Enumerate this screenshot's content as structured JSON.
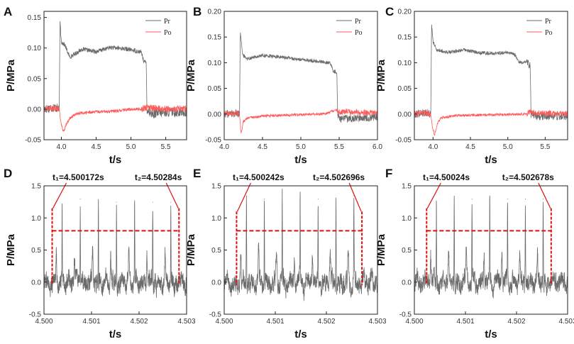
{
  "figure": {
    "legend": [
      "Pr",
      "Po"
    ],
    "colors": {
      "pr": "#6b6b6b",
      "po": "#ff5a5a",
      "mark": "#dd1111",
      "axis": "#222222"
    }
  },
  "chart_data": [
    {
      "id": "A",
      "type": "line",
      "xlabel": "t/s",
      "ylabel": "P/MPa",
      "xlim": [
        3.75,
        5.8
      ],
      "ylim": [
        -0.05,
        0.16
      ],
      "xticks": [
        4.0,
        4.5,
        5.0,
        5.5
      ],
      "xtick_labels": [
        "4.0",
        "4.5",
        "5.0",
        "5.5"
      ],
      "yticks": [
        -0.05,
        0.0,
        0.05,
        0.1,
        0.15
      ],
      "ytick_labels": [
        "-0.05",
        "0.00",
        "0.05",
        "0.10",
        "0.15"
      ],
      "series": [
        {
          "name": "Pr",
          "x": [
            3.75,
            3.9,
            3.97,
            3.98,
            4.0,
            4.05,
            4.12,
            4.3,
            4.5,
            4.7,
            4.9,
            5.05,
            5.15,
            5.18,
            5.22,
            5.23,
            5.3,
            5.5,
            5.8
          ],
          "y": [
            0.0,
            0.003,
            0.0,
            0.143,
            0.11,
            0.105,
            0.085,
            0.098,
            0.094,
            0.101,
            0.099,
            0.096,
            0.093,
            0.08,
            0.075,
            0.0,
            -0.008,
            -0.005,
            -0.005
          ]
        },
        {
          "name": "Po",
          "x": [
            3.75,
            3.9,
            3.97,
            3.99,
            4.03,
            4.07,
            4.12,
            4.2,
            4.4,
            4.6,
            4.8,
            5.0,
            5.15,
            5.22,
            5.3,
            5.5,
            5.8
          ],
          "y": [
            0.0,
            0.002,
            0.0,
            -0.02,
            -0.038,
            -0.025,
            -0.015,
            -0.008,
            -0.005,
            -0.004,
            -0.003,
            0.0,
            0.0,
            0.003,
            0.002,
            0.0,
            0.001
          ]
        }
      ]
    },
    {
      "id": "B",
      "type": "line",
      "xlabel": "t/s",
      "ylabel": "P/MPa",
      "xlim": [
        4.0,
        6.0
      ],
      "ylim": [
        -0.05,
        0.2
      ],
      "xticks": [
        4.0,
        4.5,
        5.0,
        5.5,
        6.0
      ],
      "xtick_labels": [
        "4.0",
        "4.5",
        "5.0",
        "5.5",
        "6.0"
      ],
      "yticks": [
        -0.05,
        0.0,
        0.05,
        0.1,
        0.15,
        0.2
      ],
      "ytick_labels": [
        "-0.05",
        "0.00",
        "0.05",
        "0.10",
        "0.15",
        "0.20"
      ],
      "series": [
        {
          "name": "Pr",
          "x": [
            4.0,
            4.15,
            4.2,
            4.21,
            4.24,
            4.3,
            4.5,
            4.8,
            5.0,
            5.2,
            5.38,
            5.42,
            5.47,
            5.48,
            5.52,
            5.7,
            6.0
          ],
          "y": [
            0.0,
            0.002,
            0.0,
            0.163,
            0.115,
            0.108,
            0.114,
            0.11,
            0.106,
            0.103,
            0.1,
            0.085,
            0.08,
            0.0,
            -0.01,
            -0.008,
            -0.005
          ]
        },
        {
          "name": "Po",
          "x": [
            4.0,
            4.15,
            4.2,
            4.22,
            4.25,
            4.3,
            4.5,
            4.8,
            5.0,
            5.3,
            5.47,
            5.5,
            5.6,
            5.8,
            6.0
          ],
          "y": [
            0.0,
            0.003,
            0.0,
            -0.038,
            -0.015,
            -0.008,
            -0.004,
            -0.002,
            -0.001,
            0.0,
            0.008,
            0.003,
            0.005,
            0.003,
            0.002
          ]
        }
      ]
    },
    {
      "id": "C",
      "type": "line",
      "xlabel": "t/s",
      "ylabel": "P/MPa",
      "xlim": [
        3.75,
        5.8
      ],
      "ylim": [
        -0.05,
        0.2
      ],
      "xticks": [
        4.0,
        4.5,
        5.0,
        5.5
      ],
      "xtick_labels": [
        "4.0",
        "4.5",
        "5.0",
        "5.5"
      ],
      "yticks": [
        -0.05,
        0.0,
        0.05,
        0.1,
        0.15,
        0.2
      ],
      "ytick_labels": [
        "-0.05",
        "0.00",
        "0.05",
        "0.10",
        "0.15",
        "0.20"
      ],
      "series": [
        {
          "name": "Pr",
          "x": [
            3.75,
            3.9,
            3.97,
            3.98,
            4.0,
            4.05,
            4.2,
            4.4,
            4.6,
            4.8,
            5.0,
            5.1,
            5.15,
            5.25,
            5.3,
            5.31,
            5.4,
            5.8
          ],
          "y": [
            0.0,
            0.003,
            0.0,
            0.178,
            0.14,
            0.125,
            0.12,
            0.125,
            0.12,
            0.118,
            0.12,
            0.115,
            0.1,
            0.102,
            0.095,
            0.0,
            -0.005,
            -0.004
          ]
        },
        {
          "name": "Po",
          "x": [
            3.75,
            3.9,
            3.97,
            3.99,
            4.02,
            4.06,
            4.1,
            4.3,
            4.6,
            5.0,
            5.25,
            5.3,
            5.35,
            5.6,
            5.8
          ],
          "y": [
            0.0,
            0.002,
            0.0,
            -0.025,
            -0.04,
            -0.018,
            -0.008,
            -0.003,
            -0.002,
            -0.001,
            0.0,
            0.005,
            0.002,
            0.001,
            0.001
          ]
        }
      ]
    },
    {
      "id": "D",
      "type": "line",
      "xlabel": "t/s",
      "ylabel": "P/MPa",
      "xlim": [
        4.5,
        4.503
      ],
      "ylim": [
        -0.5,
        1.5
      ],
      "xticks": [
        4.5,
        4.501,
        4.502,
        4.503
      ],
      "xtick_labels": [
        "4.500",
        "4.501",
        "4.502",
        "4.503"
      ],
      "yticks": [
        -0.5,
        0.0,
        0.5,
        1.0,
        1.5
      ],
      "ytick_labels": [
        "-0.5",
        "0.0",
        "0.5",
        "1.0",
        "1.5"
      ],
      "peaks": [
        1.2,
        1.3,
        1.25,
        1.25,
        1.2,
        1.25,
        1.25
      ],
      "annotations": {
        "t1_label": "t₁=4.500172s",
        "t2_label": "t₂=4.50284s",
        "t1": 4.500172,
        "t2": 4.50284,
        "level": 0.8,
        "marker_top": 1.15
      }
    },
    {
      "id": "E",
      "type": "line",
      "xlabel": "t/s",
      "ylabel": "P/MPa",
      "xlim": [
        4.5,
        4.503
      ],
      "ylim": [
        -0.5,
        1.5
      ],
      "xticks": [
        4.5,
        4.501,
        4.502,
        4.503
      ],
      "xtick_labels": [
        "4.500",
        "4.501",
        "4.502",
        "4.503"
      ],
      "yticks": [
        -0.5,
        0.0,
        0.5,
        1.0,
        1.5
      ],
      "ytick_labels": [
        "-0.5",
        "0.0",
        "0.5",
        "1.0",
        "1.5"
      ],
      "peaks": [
        1.35,
        1.3,
        1.4,
        1.3,
        1.3,
        1.25,
        1.35
      ],
      "annotations": {
        "t1_label": "t₁=4.500242s",
        "t2_label": "t₂=4.502696s",
        "t1": 4.500242,
        "t2": 4.502696,
        "level": 0.8,
        "marker_top": 1.1
      }
    },
    {
      "id": "F",
      "type": "line",
      "xlabel": "t/s",
      "ylabel": "P/MPa",
      "xlim": [
        4.5,
        4.503
      ],
      "ylim": [
        -0.5,
        1.5
      ],
      "xticks": [
        4.5,
        4.501,
        4.502,
        4.503
      ],
      "xtick_labels": [
        "4.500",
        "4.501",
        "4.502",
        "4.503"
      ],
      "yticks": [
        -0.5,
        0.0,
        0.5,
        1.0,
        1.5
      ],
      "ytick_labels": [
        "-0.5",
        "0.0",
        "0.5",
        "1.0",
        "1.5"
      ],
      "peaks": [
        1.25,
        1.3,
        1.3,
        1.3,
        1.3,
        1.3,
        1.3
      ],
      "annotations": {
        "t1_label": "t₁=4.50024s",
        "t2_label": "t₂=4.502678s",
        "t1": 4.50024,
        "t2": 4.502678,
        "level": 0.8,
        "marker_top": 1.15
      }
    }
  ]
}
